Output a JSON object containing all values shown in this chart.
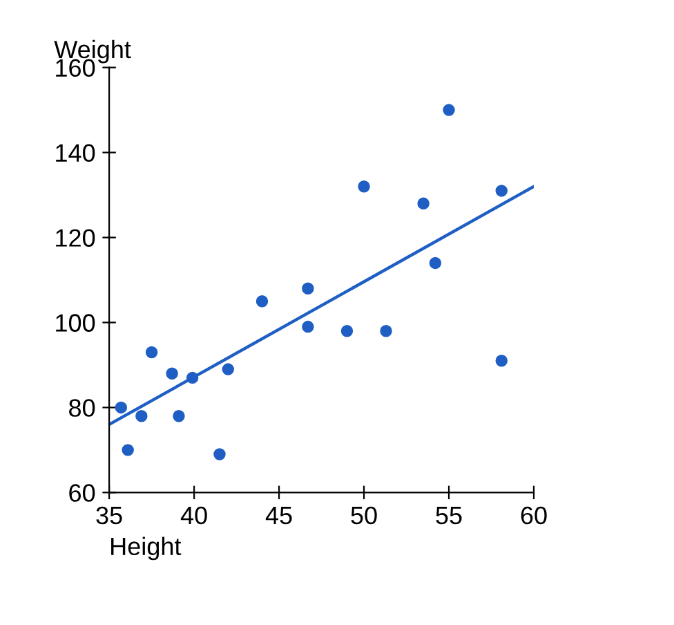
{
  "chart_data": {
    "type": "scatter",
    "xlabel": "Height",
    "ylabel": "Weight",
    "xlim": [
      35,
      60
    ],
    "ylim": [
      60,
      160
    ],
    "xticks": [
      35,
      40,
      45,
      50,
      55,
      60
    ],
    "yticks": [
      60,
      80,
      100,
      120,
      140,
      160
    ],
    "grid": false,
    "series": [
      {
        "marker": "circle",
        "color": "#1f5fc4",
        "x": [
          35.7,
          36.1,
          36.9,
          37.5,
          38.7,
          39.1,
          39.9,
          41.5,
          42.0,
          44.0,
          46.7,
          46.7,
          49.0,
          50.0,
          51.3,
          53.5,
          54.2,
          55.0,
          58.1,
          58.1
        ],
        "values": [
          80,
          70,
          78,
          93,
          88,
          78,
          87,
          69,
          89,
          105,
          108,
          99,
          98,
          132,
          98,
          128,
          114,
          150,
          131,
          91
        ]
      },
      {
        "type": "line",
        "color": "#1f5fc4",
        "x": [
          35,
          60
        ],
        "values": [
          76,
          132
        ]
      }
    ]
  }
}
